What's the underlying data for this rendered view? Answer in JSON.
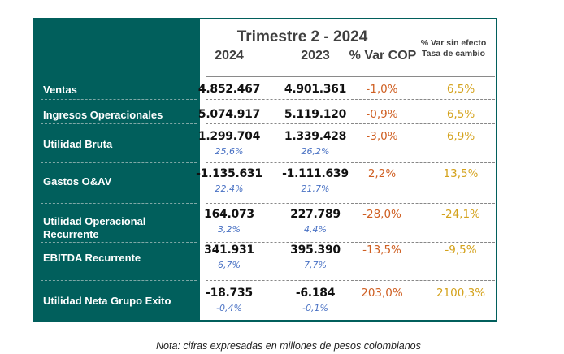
{
  "header": {
    "title": "Trimestre 2 - 2024",
    "col_2024": "2024",
    "col_2023": "2023",
    "col_var_cop": "% Var COP",
    "col_var_fx_line1": "% Var sin efecto",
    "col_var_fx_line2": "Tasa de cambio"
  },
  "rows": [
    {
      "label": "Ventas",
      "v2024": "4.852.467",
      "v2023": "4.901.361",
      "var_cop": "-1,0%",
      "var_fx": "6,5%"
    },
    {
      "label": "Ingresos Operacionales",
      "v2024": "5.074.917",
      "v2023": "5.119.120",
      "var_cop": "-0,9%",
      "var_fx": "6,5%"
    },
    {
      "label": "Utilidad Bruta",
      "v2024": "1.299.704",
      "v2023": "1.339.428",
      "m2024": "25,6%",
      "m2023": "26,2%",
      "var_cop": "-3,0%",
      "var_fx": "6,9%"
    },
    {
      "label": "Gastos O&AV",
      "v2024": "-1.135.631",
      "v2023": "-1.111.639",
      "m2024": "22,4%",
      "m2023": "21,7%",
      "var_cop": "2,2%",
      "var_fx": "13,5%"
    },
    {
      "label": "Utilidad Operacional Recurrente",
      "label_line1": "Utilidad Operacional",
      "label_line2": "Recurrente",
      "v2024": "164.073",
      "v2023": "227.789",
      "m2024": "3,2%",
      "m2023": "4,4%",
      "var_cop": "-28,0%",
      "var_fx": "-24,1%"
    },
    {
      "label": "EBITDA Recurrente",
      "v2024": "341.931",
      "v2023": "395.390",
      "m2024": "6,7%",
      "m2023": "7,7%",
      "var_cop": "-13,5%",
      "var_fx": "-9,5%"
    },
    {
      "label": "Utilidad Neta Grupo Exito",
      "v2024": "-18.735",
      "v2023": "-6.184",
      "m2024": "-0,4%",
      "m2023": "-0,1%",
      "var_cop": "203,0%",
      "var_fx": "2100,3%"
    }
  ],
  "note": "Nota: cifras expresadas en millones de pesos colombianos",
  "colors": {
    "teal": "#015f5c",
    "var_cop": "#cf5f22",
    "var_fx": "#d4a21c",
    "margin": "#4a72c4"
  }
}
